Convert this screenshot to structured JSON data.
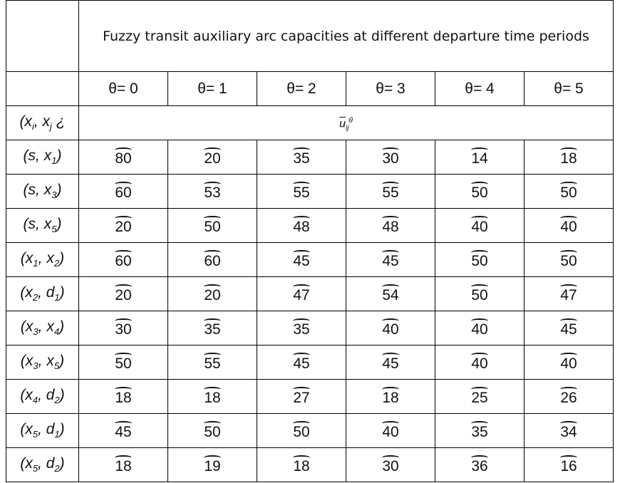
{
  "header": {
    "title": "Fuzzy transit auxiliary arc capacities at different departure time periods"
  },
  "table": {
    "columns": [
      "θ= 0",
      "θ= 1",
      "θ= 2",
      "θ= 3",
      "θ= 4",
      "θ= 5"
    ],
    "pair_label": [
      "(x",
      "i",
      ", x",
      "j",
      " ¿"
    ],
    "capacity_symbol": {
      "base": "u",
      "sub": "ij",
      "sup": "θ"
    },
    "rows": [
      {
        "label": [
          "(s, x",
          "1",
          ")"
        ],
        "values": [
          80,
          20,
          35,
          30,
          14,
          18
        ]
      },
      {
        "label": [
          "(s, x",
          "3",
          ")"
        ],
        "values": [
          60,
          53,
          55,
          55,
          50,
          50
        ]
      },
      {
        "label": [
          "(s, x",
          "5",
          ")"
        ],
        "values": [
          20,
          50,
          48,
          48,
          40,
          40
        ]
      },
      {
        "label": [
          "(x",
          "1",
          ", x",
          "2",
          ")"
        ],
        "values": [
          60,
          60,
          45,
          45,
          50,
          50
        ]
      },
      {
        "label": [
          "(x",
          "2",
          ", d",
          "1",
          ")"
        ],
        "values": [
          20,
          20,
          47,
          54,
          50,
          47
        ]
      },
      {
        "label": [
          "(x",
          "3",
          ", x",
          "4",
          ")"
        ],
        "values": [
          30,
          35,
          35,
          40,
          40,
          45
        ]
      },
      {
        "label": [
          "(x",
          "3",
          ", x",
          "5",
          ")"
        ],
        "values": [
          50,
          55,
          45,
          45,
          40,
          40
        ]
      },
      {
        "label": [
          "(x",
          "4",
          ", d",
          "2",
          ")"
        ],
        "values": [
          18,
          18,
          27,
          18,
          25,
          26
        ]
      },
      {
        "label": [
          "(x",
          "5",
          ", d",
          "1",
          ")"
        ],
        "values": [
          45,
          50,
          50,
          40,
          35,
          34
        ]
      },
      {
        "label": [
          "(x",
          "5",
          ", d",
          "2",
          ")"
        ],
        "values": [
          18,
          19,
          18,
          30,
          36,
          16
        ]
      }
    ]
  }
}
